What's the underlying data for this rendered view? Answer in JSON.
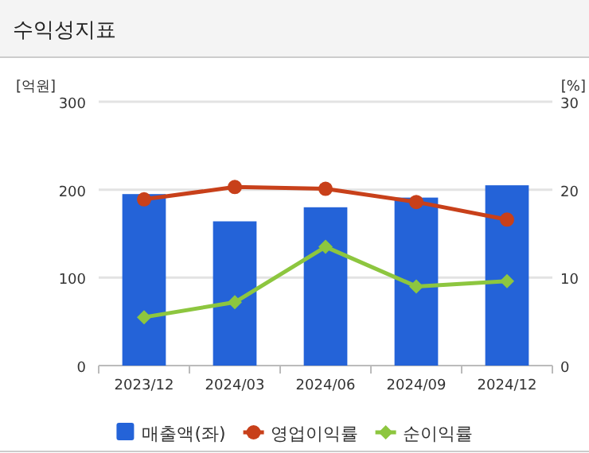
{
  "chart_data": {
    "type": "bar",
    "title": "수익성지표",
    "ylabel": "[억원]",
    "y2label": "[%]",
    "categories": [
      "2023/12",
      "2024/03",
      "2024/06",
      "2024/09",
      "2024/12"
    ],
    "series": [
      {
        "name": "매출액(좌)",
        "color": "#2463d8",
        "values": [
          195,
          164,
          180,
          191,
          205
        ]
      },
      {
        "name": "영업이익률",
        "type": "line",
        "axis": "y2",
        "marker": "circle",
        "color": "#c8401a",
        "values": [
          18.9,
          20.3,
          20.1,
          18.6,
          16.6
        ]
      },
      {
        "name": "순이익률",
        "type": "line",
        "axis": "y2",
        "marker": "diamond",
        "color": "#8dc63f",
        "values": [
          5.5,
          7.2,
          13.5,
          9.0,
          9.6
        ]
      }
    ],
    "ylim": [
      0,
      300
    ],
    "yticks": [
      0,
      100,
      200,
      300
    ],
    "y2lim": [
      0,
      30
    ],
    "y2ticks": [
      0,
      10,
      20,
      30
    ],
    "grid": "y",
    "legend": "bottom"
  }
}
